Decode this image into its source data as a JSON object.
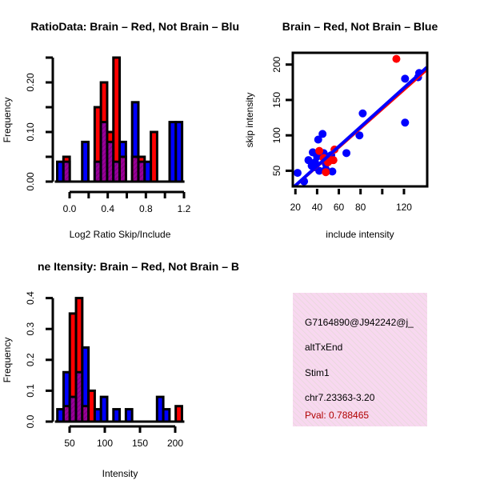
{
  "colors": {
    "red": "#ff0000",
    "blue": "#0000ff",
    "purple": "#990099",
    "info_bg": "#f8d8f0",
    "pval": "#b00000"
  },
  "chart_data": [
    {
      "type": "bar",
      "title": "RatioData: Brain – Red, Not Brain – Blu",
      "xlabel": "Log2 Ratio Skip/Include",
      "ylabel": "Frequency",
      "xlim": [
        -0.13,
        1.2
      ],
      "ylim": [
        0,
        0.25
      ],
      "xticks": [
        0.0,
        0.2,
        0.4,
        0.6,
        0.8,
        1.0,
        1.2
      ],
      "xtick_labels": [
        "0.0",
        "",
        "0.4",
        "",
        "0.8",
        "",
        "1.2"
      ],
      "yticks": [
        0,
        0.05,
        0.1,
        0.15,
        0.2,
        0.25
      ],
      "ytick_labels": [
        "0.00",
        "",
        "0.10",
        "",
        "0.20",
        ""
      ],
      "bin_start": -0.13,
      "bin_width": 0.0655,
      "series": [
        {
          "name": "Brain",
          "color": "red",
          "values": [
            0,
            0.05,
            0,
            0,
            0,
            0,
            0.15,
            0.2,
            0.1,
            0.25,
            0.05,
            0,
            0.05,
            0.05,
            0,
            0.1,
            0,
            0,
            0,
            0
          ]
        },
        {
          "name": "Not Brain",
          "color": "blue",
          "values": [
            0.04,
            0.04,
            0,
            0,
            0.08,
            0,
            0.04,
            0.12,
            0.08,
            0.04,
            0.08,
            0,
            0.16,
            0.04,
            0.04,
            0,
            0,
            0,
            0.12,
            0.12
          ]
        }
      ]
    },
    {
      "type": "scatter",
      "title": "Brain – Red, Not Brain – Blue",
      "xlabel": "include intensity",
      "ylabel": "skip intensity",
      "xlim": [
        17.6,
        141.4
      ],
      "ylim": [
        27.9,
        216.6
      ],
      "xticks": [
        20,
        40,
        60,
        80,
        100,
        120
      ],
      "xtick_labels": [
        "20",
        "40",
        "60",
        "80",
        "",
        "120"
      ],
      "yticks": [
        50,
        100,
        150,
        200
      ],
      "ytick_labels": [
        "50",
        "100",
        "150",
        "200"
      ],
      "series": [
        {
          "name": "Not Brain",
          "color": "blue",
          "points": [
            [
              22,
              47
            ],
            [
              28,
              35
            ],
            [
              32,
              65
            ],
            [
              35,
              57
            ],
            [
              36,
              76
            ],
            [
              38,
              62
            ],
            [
              38,
              55
            ],
            [
              40,
              70
            ],
            [
              42,
              50
            ],
            [
              41,
              94
            ],
            [
              45,
              102
            ],
            [
              46,
              75
            ],
            [
              48,
              52
            ],
            [
              48,
              60
            ],
            [
              50,
              70
            ],
            [
              53,
              72
            ],
            [
              54,
              49
            ],
            [
              67,
              75
            ],
            [
              79,
              100
            ],
            [
              82,
              131
            ],
            [
              121,
              180
            ],
            [
              121,
              118
            ],
            [
              133,
              182
            ],
            [
              134,
              188
            ]
          ],
          "fit": [
            [
              17,
              25
            ],
            [
              141,
              196
            ]
          ]
        },
        {
          "name": "Brain",
          "color": "red",
          "points": [
            [
              42,
              78
            ],
            [
              46,
              68
            ],
            [
              48,
              48
            ],
            [
              50,
              62
            ],
            [
              52,
              65
            ],
            [
              55,
              65
            ],
            [
              56,
              80
            ],
            [
              113,
              208
            ]
          ],
          "fit": [
            [
              17,
              24
            ],
            [
              141,
              192
            ]
          ]
        }
      ]
    },
    {
      "type": "bar",
      "title": "ne Itensity: Brain – Red, Not Brain – B",
      "xlabel": "Intensity",
      "ylabel": "Frequency",
      "xlim": [
        32.6,
        210
      ],
      "ylim": [
        0,
        0.4
      ],
      "xticks": [
        50,
        100,
        150,
        200
      ],
      "xtick_labels": [
        "50",
        "100",
        "150",
        "200"
      ],
      "yticks": [
        0,
        0.1,
        0.2,
        0.3,
        0.4
      ],
      "ytick_labels": [
        "0.0",
        "0.1",
        "0.2",
        "0.3",
        "0.4"
      ],
      "bin_start": 32.6,
      "bin_width": 8.85,
      "series": [
        {
          "name": "Brain",
          "color": "red",
          "values": [
            0,
            0.05,
            0.35,
            0.4,
            0.05,
            0.1,
            0,
            0,
            0,
            0,
            0,
            0,
            0,
            0,
            0,
            0,
            0,
            0,
            0,
            0.05
          ]
        },
        {
          "name": "Not Brain",
          "color": "blue",
          "values": [
            0.04,
            0.16,
            0.08,
            0.16,
            0.24,
            0,
            0.04,
            0.08,
            0,
            0.04,
            0,
            0.04,
            0,
            0,
            0,
            0,
            0.08,
            0.04,
            0,
            0
          ]
        }
      ]
    }
  ],
  "info": {
    "id": "G7164890@J942242@j_",
    "event_type": "altTxEnd",
    "gene": "Stim1",
    "location": "chr7.23363-3.20",
    "pval": "Pval: 0.788465"
  }
}
